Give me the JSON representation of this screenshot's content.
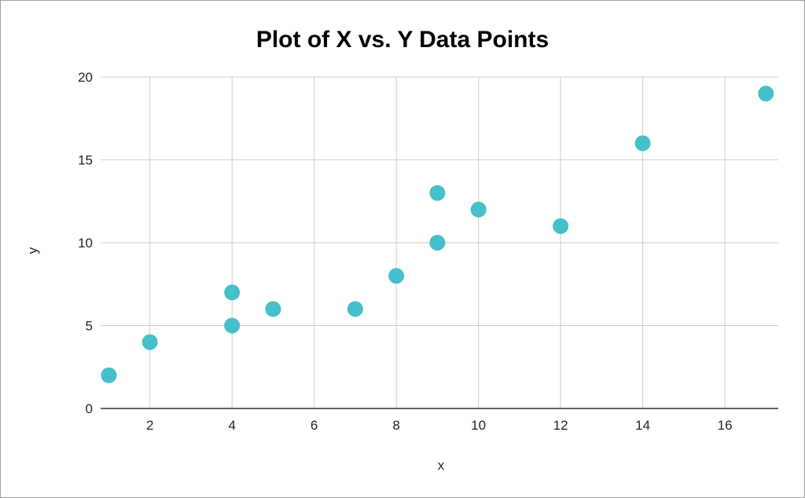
{
  "chart_data": {
    "type": "scatter",
    "title": "Plot of X vs. Y Data Points",
    "xlabel": "x",
    "ylabel": "y",
    "xlim": [
      0.8,
      17.3
    ],
    "ylim": [
      0,
      20
    ],
    "x_ticks": [
      2,
      4,
      6,
      8,
      10,
      12,
      14,
      16
    ],
    "y_ticks": [
      0,
      5,
      10,
      15,
      20
    ],
    "grid": true,
    "legend": "none",
    "marker_color": "#45bfc9",
    "series": [
      {
        "points": [
          {
            "x": 1,
            "y": 2
          },
          {
            "x": 2,
            "y": 4
          },
          {
            "x": 4,
            "y": 5
          },
          {
            "x": 4,
            "y": 7
          },
          {
            "x": 5,
            "y": 6
          },
          {
            "x": 7,
            "y": 6
          },
          {
            "x": 8,
            "y": 8
          },
          {
            "x": 9,
            "y": 10
          },
          {
            "x": 9,
            "y": 13
          },
          {
            "x": 10,
            "y": 12
          },
          {
            "x": 12,
            "y": 11
          },
          {
            "x": 14,
            "y": 16
          },
          {
            "x": 17,
            "y": 19
          }
        ]
      }
    ]
  }
}
